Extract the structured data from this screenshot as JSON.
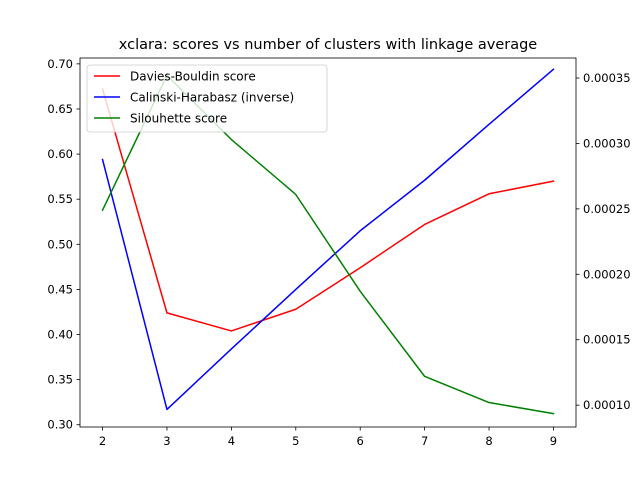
{
  "chart_data": {
    "type": "line",
    "title": "xclara: scores vs number of clusters with linkage average",
    "xlabel": "",
    "ylabel": "",
    "x": [
      2,
      3,
      4,
      5,
      6,
      7,
      8,
      9
    ],
    "xticks": [
      "2",
      "3",
      "4",
      "5",
      "6",
      "7",
      "8",
      "9"
    ],
    "xlim": [
      1.65,
      9.35
    ],
    "ylim_left": [
      0.2975,
      0.7065
    ],
    "yticks_left": [
      "0.30",
      "0.35",
      "0.40",
      "0.45",
      "0.50",
      "0.55",
      "0.60",
      "0.65",
      "0.70"
    ],
    "ylim_right": [
      8.33e-05,
      0.0003653
    ],
    "yticks_right": [
      "0.00010",
      "0.00015",
      "0.00020",
      "0.00025",
      "0.00030",
      "0.00035"
    ],
    "legend_position": "top-left",
    "grid": false,
    "series": [
      {
        "name": "Davies-Bouldin score",
        "axis": "left",
        "color": "#ff0000",
        "values": [
          0.672,
          0.424,
          0.404,
          0.428,
          0.474,
          0.522,
          0.556,
          0.57
        ]
      },
      {
        "name": "Calinski-Harabasz (inverse)",
        "axis": "left",
        "color": "#0000ff",
        "values": [
          0.594,
          0.317,
          0.384,
          0.45,
          0.515,
          0.571,
          0.633,
          0.694
        ]
      },
      {
        "name": "Silouhette score",
        "axis": "right",
        "color": "#008000",
        "values": [
          0.000249,
          0.000352,
          0.000303,
          0.000261,
          0.000187,
          0.000122,
          0.000102,
          9.35e-05
        ]
      }
    ]
  }
}
